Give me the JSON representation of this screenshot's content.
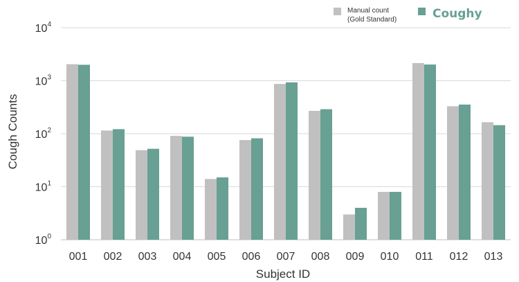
{
  "chart_data": {
    "type": "bar",
    "scale": "log",
    "categories": [
      "001",
      "002",
      "003",
      "004",
      "005",
      "006",
      "007",
      "008",
      "009",
      "010",
      "011",
      "012",
      "013"
    ],
    "series": [
      {
        "name": "Manual count (Gold Standard)",
        "legend_lines": [
          "Manual count",
          "(Gold Standard)"
        ],
        "color": "#c0c0c0",
        "values": [
          2050,
          115,
          49,
          91,
          14,
          76,
          870,
          270,
          3,
          8,
          2150,
          330,
          165
        ]
      },
      {
        "name": "Coughy",
        "legend_lines": [
          "Coughy"
        ],
        "color": "#68a093",
        "values": [
          2000,
          122,
          52,
          88,
          15,
          82,
          930,
          290,
          4,
          8,
          2020,
          355,
          145
        ]
      }
    ],
    "ylim": [
      1,
      10000
    ],
    "yticks": [
      {
        "base": "10",
        "exp": "0"
      },
      {
        "base": "10",
        "exp": "1"
      },
      {
        "base": "10",
        "exp": "2"
      },
      {
        "base": "10",
        "exp": "3"
      },
      {
        "base": "10",
        "exp": "4"
      }
    ],
    "xlabel": "Subject ID",
    "ylabel": "Cough Counts",
    "grid": true,
    "legend_position": "top-right"
  }
}
